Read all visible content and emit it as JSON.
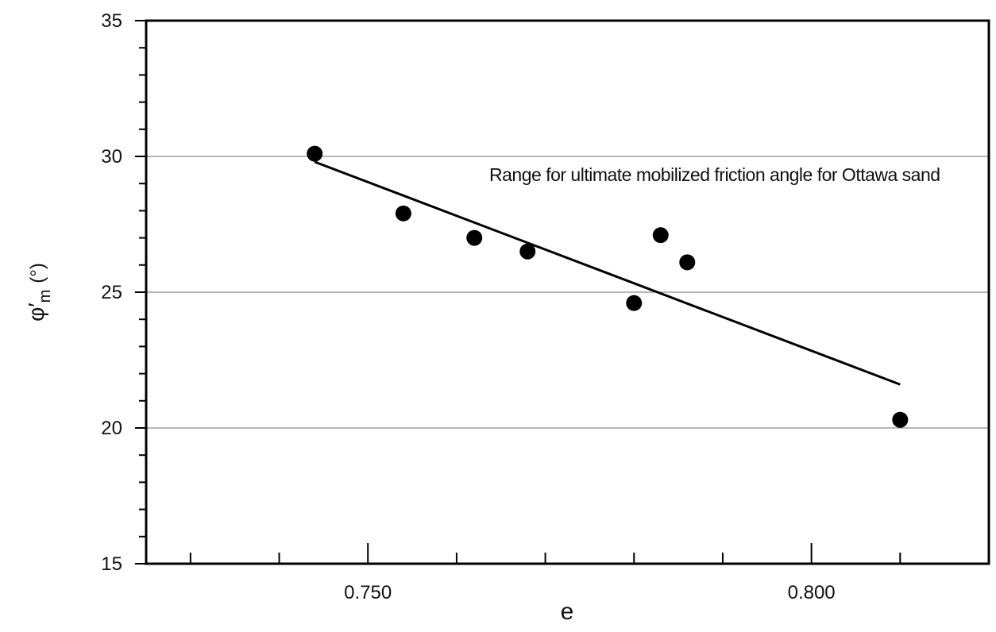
{
  "chart_data": {
    "type": "scatter",
    "title": "",
    "xlabel": "e",
    "ylabel": {
      "main": "φ′",
      "sub": "m",
      "unit": "(°)"
    },
    "xlim": [
      0.725,
      0.82
    ],
    "ylim": [
      15,
      35
    ],
    "x_ticks": [
      0.75,
      0.8
    ],
    "x_tick_labels": [
      "0.750",
      "0.800"
    ],
    "x_minor_step": 0.01,
    "y_ticks": [
      15,
      20,
      25,
      30,
      35
    ],
    "y_tick_labels": [
      "15",
      "20",
      "25",
      "30",
      "35"
    ],
    "y_minor_step": 1,
    "gridlines_y": [
      20,
      25,
      30
    ],
    "points": [
      {
        "x": 0.744,
        "y": 30.1
      },
      {
        "x": 0.754,
        "y": 27.9
      },
      {
        "x": 0.762,
        "y": 27.0
      },
      {
        "x": 0.768,
        "y": 26.5
      },
      {
        "x": 0.78,
        "y": 24.6
      },
      {
        "x": 0.783,
        "y": 27.1
      },
      {
        "x": 0.786,
        "y": 26.1
      },
      {
        "x": 0.81,
        "y": 20.3
      }
    ],
    "trendline": {
      "x": [
        0.744,
        0.81
      ],
      "y": [
        29.8,
        21.6
      ]
    },
    "annotation": {
      "text": "Range for ultimate mobilized friction angle for Ottawa sand",
      "x": 0.8145,
      "y": 29.1
    },
    "colors": {
      "points": "#000000",
      "line": "#000000",
      "grid": "#8c8c8c",
      "axis": "#000000"
    }
  }
}
